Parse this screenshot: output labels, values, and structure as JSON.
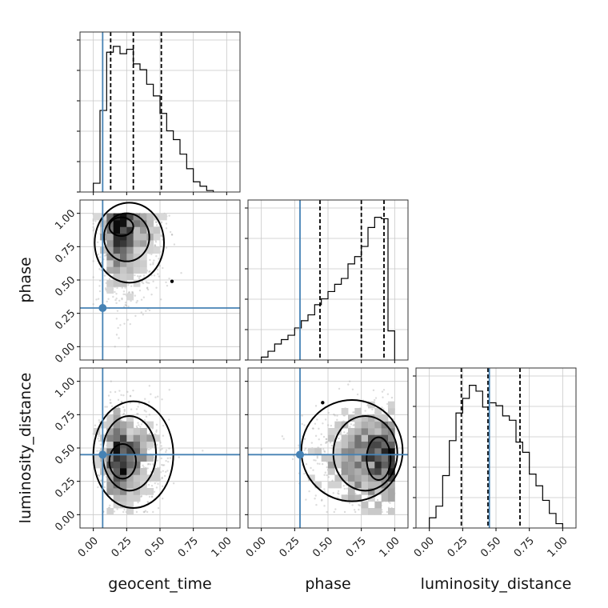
{
  "chart_data": {
    "type": "corner",
    "parameters": [
      "geocent_time",
      "phase",
      "luminosity_distance"
    ],
    "axis_range": [
      -0.1,
      1.1
    ],
    "ticks": [
      0.0,
      0.25,
      0.5,
      0.75,
      1.0
    ],
    "tick_labels": [
      "0.00",
      "0.25",
      "0.50",
      "0.75",
      "1.00"
    ],
    "grid": true,
    "truth": {
      "geocent_time": 0.07,
      "phase": 0.29,
      "luminosity_distance": 0.45
    },
    "truth_color": "#4682b4",
    "quantiles": {
      "geocent_time": [
        0.13,
        0.3,
        0.51
      ],
      "phase": [
        0.44,
        0.75,
        0.92
      ],
      "luminosity_distance": [
        0.24,
        0.44,
        0.68
      ]
    },
    "histograms": {
      "geocent_time": {
        "bin_edges": [
          0.0,
          0.05,
          0.1,
          0.15,
          0.2,
          0.25,
          0.3,
          0.35,
          0.4,
          0.45,
          0.5,
          0.55,
          0.6,
          0.65,
          0.7,
          0.75,
          0.8,
          0.85,
          0.9
        ],
        "counts": [
          0.06,
          0.56,
          0.96,
          1.0,
          0.95,
          0.98,
          0.88,
          0.84,
          0.74,
          0.66,
          0.54,
          0.42,
          0.36,
          0.26,
          0.16,
          0.07,
          0.04,
          0.01
        ]
      },
      "phase": {
        "bin_edges": [
          0.0,
          0.05,
          0.1,
          0.15,
          0.2,
          0.25,
          0.3,
          0.35,
          0.4,
          0.45,
          0.5,
          0.55,
          0.6,
          0.65,
          0.7,
          0.75,
          0.8,
          0.85,
          0.9,
          0.95,
          1.0
        ],
        "counts": [
          0.02,
          0.06,
          0.11,
          0.14,
          0.17,
          0.22,
          0.27,
          0.31,
          0.38,
          0.42,
          0.47,
          0.52,
          0.56,
          0.66,
          0.71,
          0.78,
          0.91,
          0.98,
          0.97,
          0.2
        ]
      },
      "luminosity_distance": {
        "bin_edges": [
          0.0,
          0.05,
          0.1,
          0.15,
          0.2,
          0.25,
          0.3,
          0.35,
          0.4,
          0.45,
          0.5,
          0.55,
          0.6,
          0.65,
          0.7,
          0.75,
          0.8,
          0.85,
          0.9,
          0.95,
          1.0
        ],
        "counts": [
          0.07,
          0.15,
          0.36,
          0.6,
          0.79,
          0.89,
          0.98,
          0.94,
          0.83,
          0.86,
          0.84,
          0.77,
          0.74,
          0.59,
          0.52,
          0.37,
          0.29,
          0.19,
          0.1,
          0.03
        ]
      }
    },
    "density_2d": {
      "geocent_time__phase": {
        "mode": [
          0.2,
          0.9
        ],
        "outlier": [
          0.59,
          0.49
        ]
      },
      "geocent_time__luminosity_distance": {
        "mode": [
          0.2,
          0.4
        ]
      },
      "phase__luminosity_distance": {
        "mode": [
          0.9,
          0.42
        ],
        "outlier": [
          0.46,
          0.84
        ]
      }
    }
  }
}
